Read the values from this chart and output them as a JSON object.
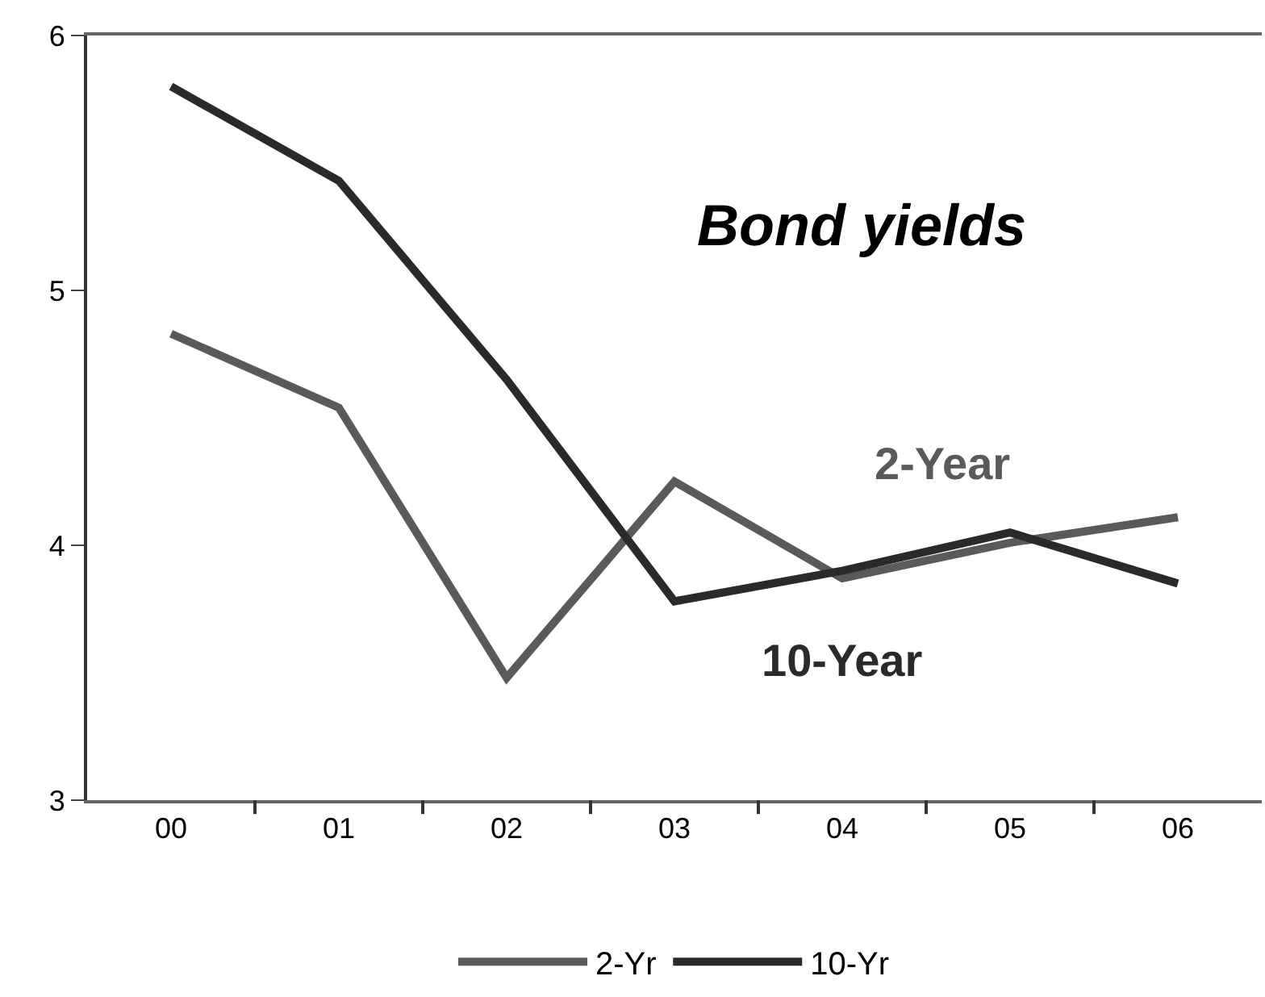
{
  "chart_data": {
    "type": "line",
    "title": "Bond yields",
    "categories": [
      "00",
      "01",
      "02",
      "03",
      "04",
      "05",
      "06"
    ],
    "series": [
      {
        "name": "2-Yr",
        "color": "#5a5a5a",
        "values": [
          4.83,
          4.54,
          3.48,
          4.25,
          3.87,
          4.01,
          4.11
        ]
      },
      {
        "name": "10-Yr",
        "color": "#2a2a2a",
        "values": [
          5.8,
          5.43,
          4.65,
          3.78,
          3.9,
          4.05,
          3.85
        ]
      }
    ],
    "annotations": [
      "2-Year",
      "10-Year"
    ],
    "ylim": [
      3,
      6
    ],
    "yticks": [
      3,
      4,
      5,
      6
    ],
    "legend": "bottom",
    "marker": "none",
    "line_style": "solid"
  }
}
